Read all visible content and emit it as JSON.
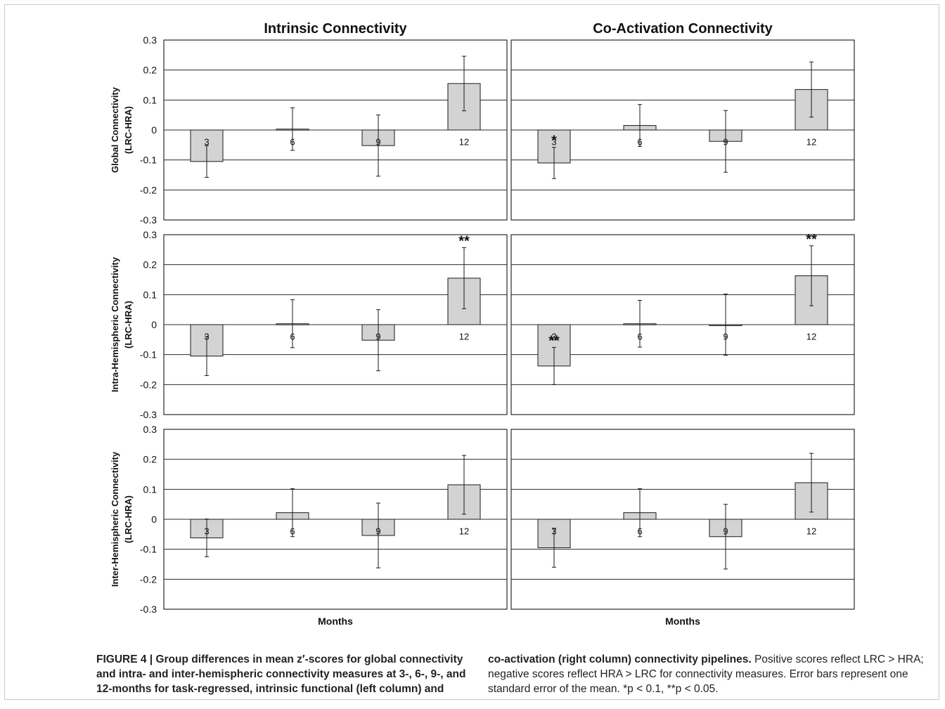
{
  "chart_data": {
    "type": "bar",
    "column_titles": [
      "Intrinsic Connectivity",
      "Co-Activation Connectivity"
    ],
    "row_ylabels": [
      [
        "Global Connectivity",
        "(LRC-HRA)"
      ],
      [
        "Intra-Hemispheric Connectivity",
        "(LRC-HRA)"
      ],
      [
        "Inter-Hemispheric Connectivity",
        "(LRC-HRA)"
      ]
    ],
    "xlabel": "Months",
    "categories": [
      "3",
      "6",
      "9",
      "12"
    ],
    "ylim": [
      -0.3,
      0.3
    ],
    "yticks": [
      "0.3",
      "0.2",
      "0.1",
      "0",
      "-0.1",
      "-0.2",
      "-0.3"
    ],
    "grid": true,
    "bar_color": "#d3d3d3",
    "panels": [
      {
        "row": 0,
        "col": 0,
        "values": [
          -0.105,
          0.003,
          -0.052,
          0.155
        ],
        "err": [
          0.053,
          0.071,
          0.102,
          0.091
        ],
        "marks": [
          "",
          "",
          "",
          ""
        ]
      },
      {
        "row": 0,
        "col": 1,
        "values": [
          -0.11,
          0.015,
          -0.038,
          0.135
        ],
        "err": [
          0.052,
          0.07,
          0.103,
          0.092
        ],
        "marks": [
          "*",
          "",
          "",
          ""
        ]
      },
      {
        "row": 1,
        "col": 0,
        "values": [
          -0.105,
          0.003,
          -0.052,
          0.155
        ],
        "err": [
          0.065,
          0.08,
          0.102,
          0.102
        ],
        "marks": [
          "",
          "",
          "",
          "**"
        ]
      },
      {
        "row": 1,
        "col": 1,
        "values": [
          -0.138,
          0.003,
          0.0,
          0.163
        ],
        "err": [
          0.062,
          0.078,
          0.102,
          0.1
        ],
        "marks": [
          "**",
          "",
          "",
          "**"
        ]
      },
      {
        "row": 2,
        "col": 0,
        "values": [
          -0.062,
          0.022,
          -0.054,
          0.115
        ],
        "err": [
          0.063,
          0.08,
          0.108,
          0.098
        ],
        "marks": [
          "",
          "",
          "",
          ""
        ]
      },
      {
        "row": 2,
        "col": 1,
        "values": [
          -0.095,
          0.022,
          -0.058,
          0.122
        ],
        "err": [
          0.065,
          0.08,
          0.108,
          0.098
        ],
        "marks": [
          "",
          "",
          "",
          ""
        ]
      }
    ]
  },
  "caption": {
    "left_bold": "FIGURE 4 | Group differences in mean z′-scores for global connectivity and intra- and inter-hemispheric connectivity measures at 3-, 6-, 9-, and 12-months for task-regressed, intrinsic functional (left column) and",
    "right_bold": "co-activation (right column) connectivity pipelines.",
    "right_rest": "Positive scores reflect LRC > HRA; negative scores reflect HRA > LRC for connectivity measures. Error bars represent one standard error of the mean. *p < 0.1, **p < 0.05."
  }
}
